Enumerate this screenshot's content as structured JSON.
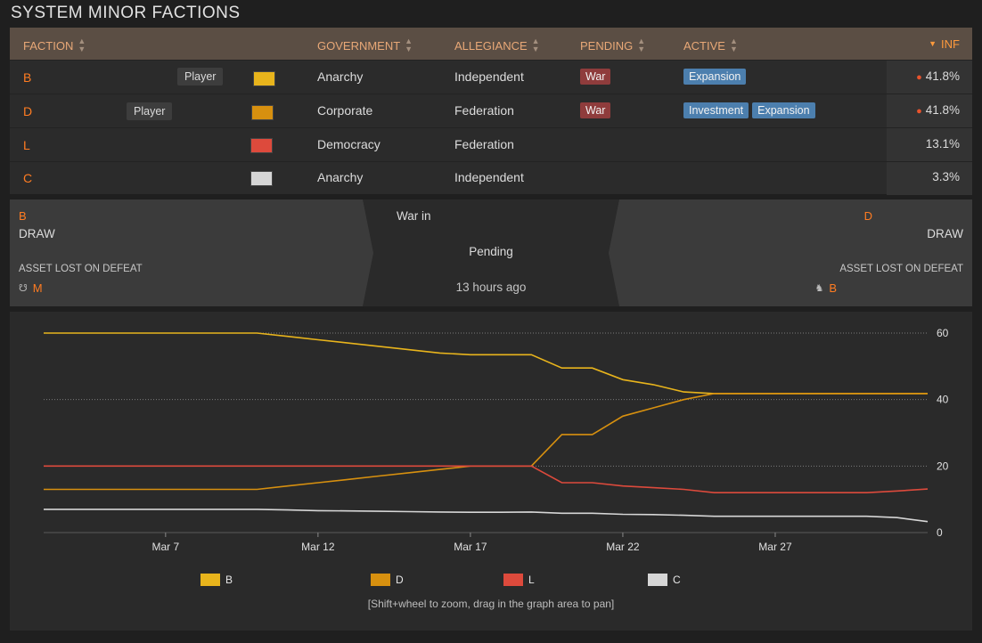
{
  "page_title": "SYSTEM MINOR FACTIONS",
  "table": {
    "headers": {
      "faction": "FACTION",
      "government": "GOVERNMENT",
      "allegiance": "ALLEGIANCE",
      "pending": "PENDING",
      "active": "ACTIVE",
      "inf": "INF"
    },
    "rows": [
      {
        "name": "B",
        "player": "Player",
        "color": "#e8b41c",
        "government": "Anarchy",
        "allegiance": "Independent",
        "pending": "War",
        "active": [
          "Expansion"
        ],
        "inf": "41.8%"
      },
      {
        "name": "D",
        "player": "Player",
        "color": "#d7900f",
        "government": "Corporate",
        "allegiance": "Federation",
        "pending": "War",
        "active": [
          "Investment",
          "Expansion"
        ],
        "inf": "41.8%"
      },
      {
        "name": "L",
        "player": "",
        "color": "#dd4a3c",
        "government": "Democracy",
        "allegiance": "Federation",
        "pending": "",
        "active": [],
        "inf": "13.1%"
      },
      {
        "name": "C",
        "player": "",
        "color": "#d6d6d6",
        "government": "Anarchy",
        "allegiance": "Independent",
        "pending": "",
        "active": [],
        "inf": "3.3%"
      }
    ]
  },
  "conflict": {
    "left_faction": "B",
    "left_result": "DRAW",
    "left_asset_label": "ASSET LOST ON DEFEAT",
    "left_asset": "M",
    "center_title": "War in",
    "center_status": "Pending",
    "center_time": "13 hours ago",
    "right_faction": "D",
    "right_result": "DRAW",
    "right_asset_label": "ASSET LOST ON DEFEAT",
    "right_asset": "B"
  },
  "chart_data": {
    "type": "line",
    "x": [
      "Mar 3",
      "Mar 4",
      "Mar 5",
      "Mar 6",
      "Mar 7",
      "Mar 8",
      "Mar 9",
      "Mar 10",
      "Mar 11",
      "Mar 12",
      "Mar 13",
      "Mar 14",
      "Mar 15",
      "Mar 16",
      "Mar 17",
      "Mar 18",
      "Mar 19",
      "Mar 20",
      "Mar 21",
      "Mar 22",
      "Mar 23",
      "Mar 24",
      "Mar 25",
      "Mar 26",
      "Mar 27",
      "Mar 28",
      "Mar 29",
      "Mar 30",
      "Mar 31",
      "Apr 1"
    ],
    "xticks": [
      "Mar 7",
      "Mar 12",
      "Mar 17",
      "Mar 22",
      "Mar 27"
    ],
    "yticks": [
      0,
      20,
      40,
      60
    ],
    "ylim": [
      0,
      60
    ],
    "series": [
      {
        "name": "B",
        "color": "#e8b41c",
        "values": [
          60,
          60,
          60,
          60,
          60,
          60,
          60,
          60,
          59,
          58,
          57,
          56,
          55,
          54,
          53.5,
          53.5,
          53.5,
          49.5,
          49.5,
          46,
          44.5,
          42.3,
          41.8,
          41.8,
          41.8,
          41.8,
          41.8,
          41.8,
          41.8,
          41.8
        ]
      },
      {
        "name": "D",
        "color": "#d7900f",
        "values": [
          13,
          13,
          13,
          13,
          13,
          13,
          13,
          13,
          14,
          15,
          16,
          17,
          18,
          19,
          20,
          20,
          20,
          29.5,
          29.5,
          35,
          37.5,
          40,
          41.8,
          41.8,
          41.8,
          41.8,
          41.8,
          41.8,
          41.8,
          41.8
        ]
      },
      {
        "name": "L",
        "color": "#dd4a3c",
        "values": [
          20,
          20,
          20,
          20,
          20,
          20,
          20,
          20,
          20,
          20,
          20,
          20,
          20,
          20,
          20,
          20,
          20,
          15,
          15,
          14,
          13.5,
          13,
          12,
          12,
          12,
          12,
          12,
          12,
          12.5,
          13.1
        ]
      },
      {
        "name": "C",
        "color": "#d6d6d6",
        "values": [
          7,
          7,
          7,
          7,
          7,
          7,
          7,
          7,
          6.8,
          6.6,
          6.5,
          6.4,
          6.3,
          6.2,
          6.1,
          6.1,
          6.2,
          5.8,
          5.8,
          5.5,
          5.4,
          5.2,
          4.9,
          4.9,
          4.9,
          4.9,
          4.9,
          4.9,
          4.5,
          3.3
        ]
      }
    ],
    "legend_placement": "bottom",
    "hint": "[Shift+wheel to zoom, drag in the graph area to pan]"
  },
  "colors": {
    "accent": "#ff7c22",
    "war": "#8f3c3c",
    "state": "#4c7fae"
  }
}
